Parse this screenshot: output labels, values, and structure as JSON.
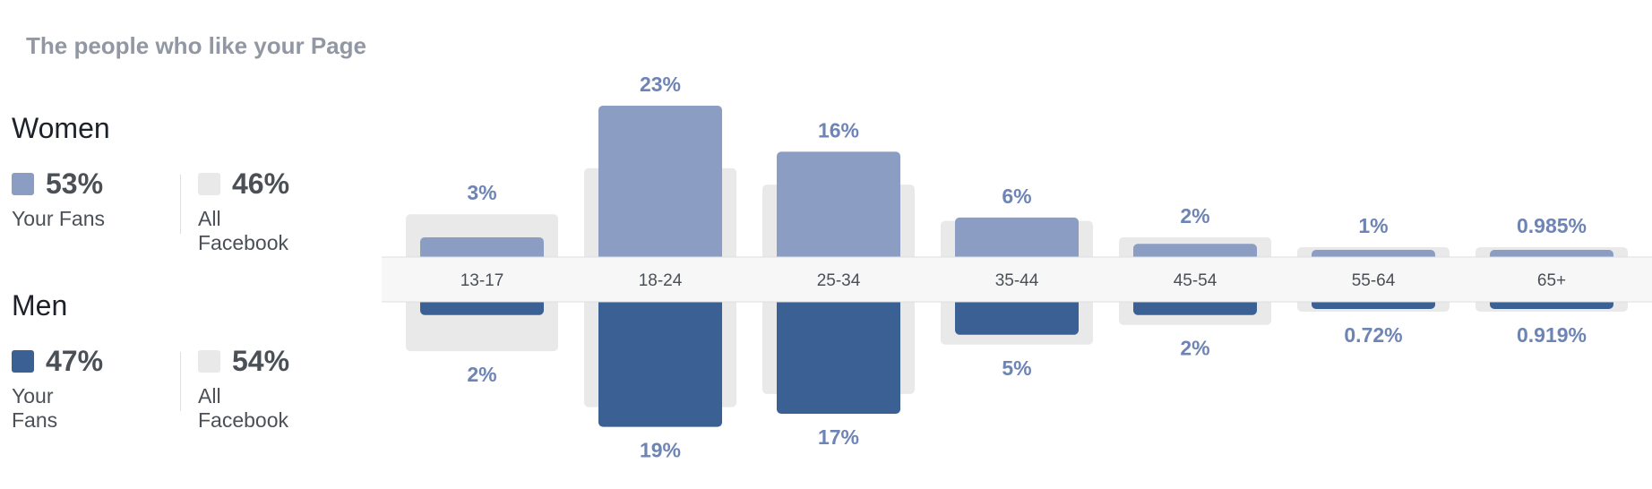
{
  "header": {
    "title": "The people who like your Page"
  },
  "legend": {
    "women": {
      "title": "Women",
      "fans_pct": "53%",
      "fans_label": "Your Fans",
      "all_pct": "46%",
      "all_label": "All Facebook"
    },
    "men": {
      "title": "Men",
      "fans_pct": "47%",
      "fans_label": "Your Fans",
      "all_pct": "54%",
      "all_label": "All Facebook"
    }
  },
  "colors": {
    "women_fans": "#8b9dc3",
    "men_fans": "#3b6194",
    "all_facebook": "#e9e9ea",
    "axis_band": "#f7f7f7",
    "label": "#6d84b4"
  },
  "chart_data": {
    "type": "bar",
    "categories": [
      "13-17",
      "18-24",
      "25-34",
      "35-44",
      "45-54",
      "55-64",
      "65+"
    ],
    "series": [
      {
        "name": "Women",
        "group": "Your Fans",
        "values": [
          3,
          23,
          16,
          6,
          2,
          1,
          0.985
        ],
        "labels": [
          "3%",
          "23%",
          "16%",
          "6%",
          "2%",
          "1%",
          "0.985%"
        ]
      },
      {
        "name": "Men",
        "group": "Your Fans",
        "values": [
          2,
          19,
          17,
          5,
          2,
          0.72,
          0.919
        ],
        "labels": [
          "2%",
          "19%",
          "17%",
          "5%",
          "2%",
          "0.72%",
          "0.919%"
        ]
      },
      {
        "name": "Women",
        "group": "All Facebook",
        "values": [
          6.5,
          13.5,
          11,
          5.5,
          3,
          1.5,
          1.5
        ]
      },
      {
        "name": "Men",
        "group": "All Facebook",
        "values": [
          7.5,
          16,
          14,
          6.5,
          3.5,
          1.5,
          1.5
        ]
      }
    ]
  }
}
